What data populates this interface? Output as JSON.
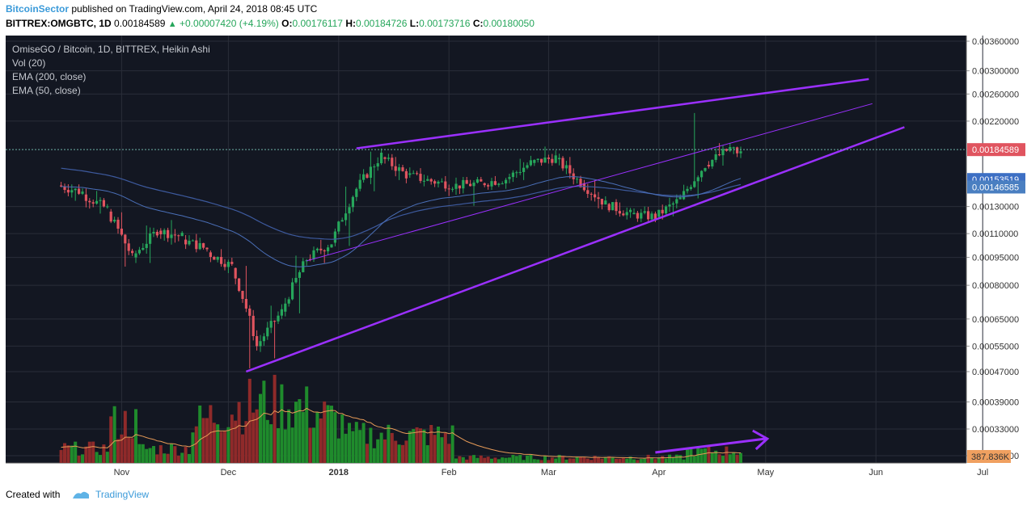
{
  "header": {
    "author": "BitcoinSector",
    "published_text": "published on TradingView.com, April 24, 2018 08:45 UTC",
    "symbol_line": "BITTREX:OMGBTC, 1D",
    "last_price": "0.00184589",
    "change": "+0.00007420 (+4.19%)",
    "open_label": "O:",
    "open": "0.00176117",
    "high_label": "H:",
    "high": "0.00184726",
    "low_label": "L:",
    "low": "0.00173716",
    "close_label": "C:",
    "close": "0.00180050"
  },
  "legend": {
    "main": "OmiseGO / Bitcoin, 1D, BITTREX, Heikin Ashi",
    "vol": "Vol (20)",
    "ema200": "EMA (200, close)",
    "ema50": "EMA (50, close)"
  },
  "footer": {
    "created_with": "Created with",
    "brand": "TradingView"
  },
  "colors": {
    "background": "#131722",
    "grid": "#2a2e39",
    "up": "#26a65b",
    "down": "#e0545f",
    "up_volume": "#1f8b2c",
    "down_volume": "#8f2a2a",
    "ema200": "#3d5a9e",
    "ema50": "#4a6fb8",
    "vol_ma": "#e69a57",
    "trendline": "#9b30ff",
    "price_tag": "#e0545f",
    "ema50_tag": "#3d6fc4",
    "ema200_tag": "#4a7fc1",
    "vol_tag": "#f0a060"
  },
  "chart_data": {
    "type": "candlestick",
    "style": "Heikin Ashi",
    "scale": "log",
    "x_labels": [
      "Nov",
      "Dec",
      "2018",
      "Feb",
      "Mar",
      "Apr",
      "May",
      "Jun",
      "Jul"
    ],
    "y_ticks": [
      "0.00360000",
      "0.00300000",
      "0.00260000",
      "0.00220000",
      "0.00130000",
      "0.00110000",
      "0.00095000",
      "0.00080000",
      "0.00065000",
      "0.00055000",
      "0.00047000",
      "0.00039000",
      "0.00033000",
      "0.00028000"
    ],
    "price_label": "0.00184589",
    "ema50_label": "0.00153519",
    "ema200_label": "0.00146585",
    "volume_label": "387.836K",
    "ohlc_weekly_approx": [
      {
        "d": "2017-10-15",
        "o": 0.00148,
        "h": 0.00152,
        "l": 0.00132,
        "c": 0.00142
      },
      {
        "d": "2017-10-22",
        "o": 0.0014,
        "h": 0.00146,
        "l": 0.00122,
        "c": 0.00128
      },
      {
        "d": "2017-10-29",
        "o": 0.00126,
        "h": 0.00128,
        "l": 0.00088,
        "c": 0.00095
      },
      {
        "d": "2017-11-05",
        "o": 0.00095,
        "h": 0.00118,
        "l": 0.0009,
        "c": 0.00112
      },
      {
        "d": "2017-11-12",
        "o": 0.00112,
        "h": 0.00122,
        "l": 0.00102,
        "c": 0.00108
      },
      {
        "d": "2017-11-19",
        "o": 0.00106,
        "h": 0.00112,
        "l": 0.00098,
        "c": 0.001
      },
      {
        "d": "2017-11-26",
        "o": 0.00098,
        "h": 0.00102,
        "l": 0.00086,
        "c": 0.0009
      },
      {
        "d": "2017-12-03",
        "o": 0.00089,
        "h": 0.00092,
        "l": 0.00047,
        "c": 0.00055
      },
      {
        "d": "2017-12-10",
        "o": 0.00055,
        "h": 0.00072,
        "l": 0.0005,
        "c": 0.00068
      },
      {
        "d": "2017-12-17",
        "o": 0.00068,
        "h": 0.00098,
        "l": 0.00066,
        "c": 0.00094
      },
      {
        "d": "2017-12-24",
        "o": 0.00094,
        "h": 0.00108,
        "l": 0.0009,
        "c": 0.00104
      },
      {
        "d": "2017-12-31",
        "o": 0.00104,
        "h": 0.0015,
        "l": 0.001,
        "c": 0.00145
      },
      {
        "d": "2018-01-07",
        "o": 0.00145,
        "h": 0.00186,
        "l": 0.0014,
        "c": 0.00178
      },
      {
        "d": "2018-01-14",
        "o": 0.00176,
        "h": 0.0018,
        "l": 0.0015,
        "c": 0.00158
      },
      {
        "d": "2018-01-21",
        "o": 0.00158,
        "h": 0.00168,
        "l": 0.00146,
        "c": 0.00152
      },
      {
        "d": "2018-01-28",
        "o": 0.00152,
        "h": 0.0016,
        "l": 0.00136,
        "c": 0.00148
      },
      {
        "d": "2018-02-04",
        "o": 0.00148,
        "h": 0.00156,
        "l": 0.00128,
        "c": 0.0015
      },
      {
        "d": "2018-02-11",
        "o": 0.0015,
        "h": 0.0016,
        "l": 0.00144,
        "c": 0.00154
      },
      {
        "d": "2018-02-18",
        "o": 0.00154,
        "h": 0.00178,
        "l": 0.0015,
        "c": 0.0017
      },
      {
        "d": "2018-02-25",
        "o": 0.0017,
        "h": 0.00192,
        "l": 0.00166,
        "c": 0.00176
      },
      {
        "d": "2018-03-04",
        "o": 0.00174,
        "h": 0.0018,
        "l": 0.00146,
        "c": 0.0015
      },
      {
        "d": "2018-03-11",
        "o": 0.0015,
        "h": 0.00156,
        "l": 0.00126,
        "c": 0.00132
      },
      {
        "d": "2018-03-18",
        "o": 0.00132,
        "h": 0.00136,
        "l": 0.0012,
        "c": 0.00124
      },
      {
        "d": "2018-03-25",
        "o": 0.00124,
        "h": 0.0013,
        "l": 0.00118,
        "c": 0.00122
      },
      {
        "d": "2018-04-01",
        "o": 0.00122,
        "h": 0.0014,
        "l": 0.0012,
        "c": 0.00136
      },
      {
        "d": "2018-04-08",
        "o": 0.00136,
        "h": 0.00236,
        "l": 0.00134,
        "c": 0.00168
      },
      {
        "d": "2018-04-15",
        "o": 0.00168,
        "h": 0.00196,
        "l": 0.00164,
        "c": 0.00186
      },
      {
        "d": "2018-04-22",
        "o": 0.00186,
        "h": 0.00188,
        "l": 0.00172,
        "c": 0.0018
      }
    ],
    "volume_relative_note": "volume bars shown as relative heights, peak in mid-December 2017",
    "annotations": [
      "rising resistance trendline",
      "rising support trendline",
      "mid trendline",
      "rising volume arrow (April)"
    ]
  }
}
